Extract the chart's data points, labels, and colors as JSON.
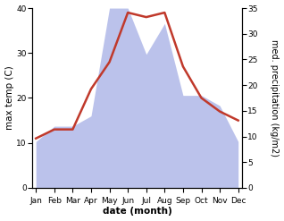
{
  "months": [
    "Jan",
    "Feb",
    "Mar",
    "Apr",
    "May",
    "Jun",
    "Jul",
    "Aug",
    "Sep",
    "Oct",
    "Nov",
    "Dec"
  ],
  "temperature": [
    11,
    13,
    13,
    22,
    28,
    39,
    38,
    39,
    27,
    20,
    17,
    15
  ],
  "precipitation": [
    9,
    12,
    12,
    14,
    35,
    35,
    26,
    32,
    18,
    18,
    16,
    9
  ],
  "temp_color": "#c0392b",
  "precip_color": "#b0b8e8",
  "temp_ylim": [
    0,
    40
  ],
  "precip_ylim": [
    0,
    35
  ],
  "temp_yticks": [
    0,
    10,
    20,
    30,
    40
  ],
  "precip_yticks": [
    0,
    5,
    10,
    15,
    20,
    25,
    30,
    35
  ],
  "xlabel": "date (month)",
  "ylabel_left": "max temp (C)",
  "ylabel_right": "med. precipitation (kg/m2)",
  "xlabel_fontsize": 7.5,
  "ylabel_fontsize": 7.5,
  "tick_fontsize": 6.5,
  "linewidth": 1.8
}
